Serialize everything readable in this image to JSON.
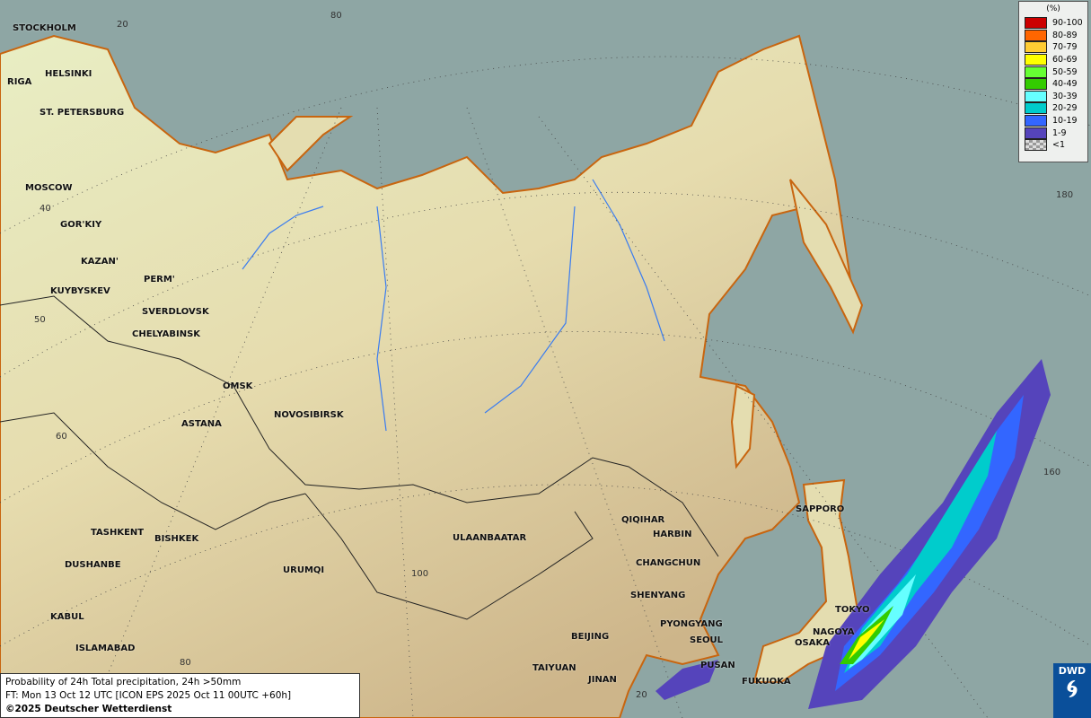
{
  "legend": {
    "unit": "(%)",
    "items": [
      {
        "label": "90-100",
        "color": "#cc0000"
      },
      {
        "label": "80-89",
        "color": "#ff6600"
      },
      {
        "label": "70-79",
        "color": "#ffcc33"
      },
      {
        "label": "60-69",
        "color": "#ffff00"
      },
      {
        "label": "50-59",
        "color": "#66ff33"
      },
      {
        "label": "40-49",
        "color": "#33cc00"
      },
      {
        "label": "30-39",
        "color": "#66ffff"
      },
      {
        "label": "20-29",
        "color": "#00cccc"
      },
      {
        "label": "10-19",
        "color": "#3366ff"
      },
      {
        "label": "1-9",
        "color": "#5544bb"
      },
      {
        "label": "<1",
        "color": "#bbbbbb"
      }
    ]
  },
  "caption": {
    "line1": "Probability of 24h Total precipitation, 24h >50mm",
    "line2": "FT: Mon 13 Oct 12 UTC [ICON EPS 2025 Oct 11 00UTC +60h]",
    "copyright": "©2025 Deutscher Wetterdienst"
  },
  "logo": {
    "text": "DWD"
  },
  "cities": [
    "STOCKHOLM",
    "HELSINKI",
    "RIGA",
    "ST. PETERSBURG",
    "MOSCOW",
    "GOR'KIY",
    "KAZAN'",
    "PERM'",
    "KUYBYSKEV",
    "SVERDLOVSK",
    "CHELYABINSK",
    "OMSK",
    "NOVOSIBIRSK",
    "ASTANA",
    "TASHKENT",
    "BISHKEK",
    "DUSHANBE",
    "URUMQI",
    "ULAANBAATAR",
    "QIQIHAR",
    "HARBIN",
    "CHANGCHUN",
    "SHENYANG",
    "PYONGYANG",
    "BEIJING",
    "SEOUL",
    "TAIYUAN",
    "PUSAN",
    "JINAN",
    "FUKUOKA",
    "SAPPORO",
    "TOKYO",
    "NAGOYA",
    "OSAKA",
    "KABUL",
    "ISLAMABAD"
  ],
  "grid_labels": [
    "20",
    "80",
    "40",
    "50",
    "60",
    "100",
    "80",
    "20",
    "180",
    "160"
  ]
}
